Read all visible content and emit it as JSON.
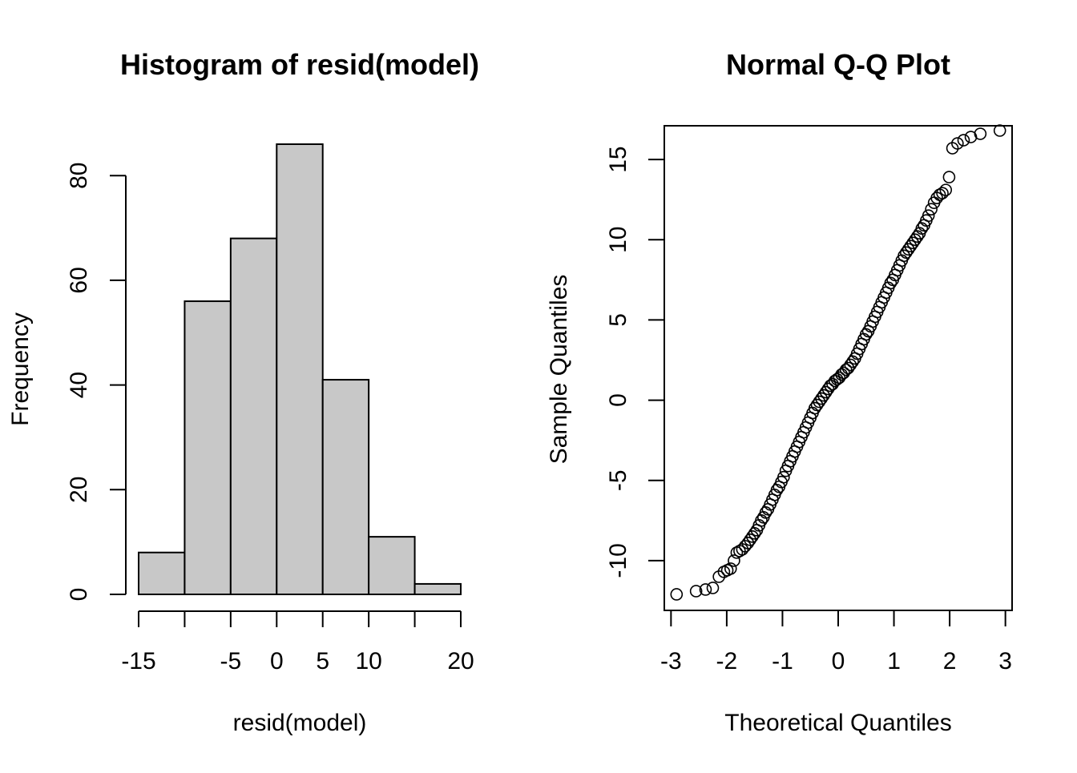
{
  "chart_data": [
    {
      "type": "bar",
      "title": "Histogram of resid(model)",
      "xlabel": "resid(model)",
      "ylabel": "Frequency",
      "bins": [
        {
          "from": -15,
          "to": -10,
          "count": 8
        },
        {
          "from": -10,
          "to": -5,
          "count": 56
        },
        {
          "from": -5,
          "to": 0,
          "count": 68
        },
        {
          "from": 0,
          "to": 5,
          "count": 86
        },
        {
          "from": 5,
          "to": 10,
          "count": 41
        },
        {
          "from": 10,
          "to": 15,
          "count": 11
        },
        {
          "from": 15,
          "to": 20,
          "count": 2
        }
      ],
      "xticks": [
        -15,
        -10,
        -5,
        0,
        5,
        10,
        15,
        20
      ],
      "xtick_labels": [
        "-15",
        "",
        "-5",
        "0",
        "5",
        "10",
        "",
        "20"
      ],
      "yticks": [
        0,
        20,
        40,
        60,
        80
      ],
      "ytick_labels": [
        "0",
        "20",
        "40",
        "60",
        "80"
      ],
      "xlim": [
        -15,
        20
      ],
      "ylim": [
        0,
        86
      ],
      "bar_fill": "#c8c8c8",
      "grid": false,
      "legend": "none"
    },
    {
      "type": "scatter",
      "title": "Normal Q-Q Plot",
      "xlabel": "Theoretical Quantiles",
      "ylabel": "Sample Quantiles",
      "x": [
        -2.9,
        -2.55,
        -2.38,
        -2.25,
        -2.14,
        -2.05,
        -1.99,
        -1.93,
        -1.87,
        -1.82,
        -1.77,
        -1.72,
        -1.67,
        -1.62,
        -1.58,
        -1.54,
        -1.5,
        -1.46,
        -1.42,
        -1.38,
        -1.34,
        -1.3,
        -1.26,
        -1.22,
        -1.18,
        -1.14,
        -1.1,
        -1.06,
        -1.02,
        -0.98,
        -0.94,
        -0.9,
        -0.86,
        -0.82,
        -0.78,
        -0.74,
        -0.7,
        -0.66,
        -0.62,
        -0.58,
        -0.54,
        -0.5,
        -0.46,
        -0.42,
        -0.38,
        -0.34,
        -0.3,
        -0.26,
        -0.22,
        -0.18,
        -0.14,
        -0.1,
        -0.06,
        -0.02,
        0.02,
        0.06,
        0.1,
        0.14,
        0.18,
        0.22,
        0.26,
        0.3,
        0.34,
        0.38,
        0.42,
        0.46,
        0.5,
        0.54,
        0.58,
        0.62,
        0.66,
        0.7,
        0.74,
        0.78,
        0.82,
        0.86,
        0.9,
        0.94,
        0.98,
        1.02,
        1.06,
        1.1,
        1.14,
        1.18,
        1.22,
        1.26,
        1.3,
        1.34,
        1.38,
        1.42,
        1.46,
        1.5,
        1.54,
        1.58,
        1.62,
        1.67,
        1.72,
        1.77,
        1.82,
        1.87,
        1.93,
        1.99,
        2.05,
        2.14,
        2.25,
        2.38,
        2.55,
        2.9
      ],
      "y": [
        -12.1,
        -11.9,
        -11.8,
        -11.7,
        -11.0,
        -10.7,
        -10.6,
        -10.5,
        -10.0,
        -9.5,
        -9.4,
        -9.3,
        -9.1,
        -8.9,
        -8.7,
        -8.5,
        -8.3,
        -8.1,
        -7.8,
        -7.5,
        -7.3,
        -7.0,
        -6.8,
        -6.5,
        -6.2,
        -5.9,
        -5.6,
        -5.4,
        -5.1,
        -4.8,
        -4.4,
        -4.1,
        -3.8,
        -3.5,
        -3.2,
        -2.9,
        -2.6,
        -2.3,
        -2.0,
        -1.7,
        -1.4,
        -1.1,
        -0.8,
        -0.5,
        -0.3,
        -0.1,
        0.1,
        0.3,
        0.5,
        0.7,
        0.9,
        1.0,
        1.2,
        1.3,
        1.4,
        1.6,
        1.7,
        1.9,
        2.0,
        2.2,
        2.4,
        2.6,
        2.9,
        3.2,
        3.5,
        3.8,
        4.1,
        4.3,
        4.6,
        4.9,
        5.2,
        5.5,
        5.8,
        6.1,
        6.4,
        6.7,
        7.0,
        7.3,
        7.5,
        7.8,
        8.1,
        8.4,
        8.7,
        9.0,
        9.2,
        9.4,
        9.6,
        9.8,
        10.0,
        10.2,
        10.4,
        10.7,
        10.9,
        11.2,
        11.5,
        11.9,
        12.3,
        12.6,
        12.8,
        12.9,
        13.1,
        13.9,
        15.7,
        16.0,
        16.2,
        16.4,
        16.6,
        16.8
      ],
      "xticks": [
        -3,
        -2,
        -1,
        0,
        1,
        2,
        3
      ],
      "xtick_labels": [
        "-3",
        "-2",
        "-1",
        "0",
        "1",
        "2",
        "3"
      ],
      "yticks": [
        -10,
        -5,
        0,
        5,
        10,
        15
      ],
      "ytick_labels": [
        "-10",
        "-5",
        "0",
        "5",
        "10",
        "15"
      ],
      "xlim": [
        -3.12,
        3.12
      ],
      "ylim": [
        -13.1,
        17.1
      ],
      "marker": "open-circle",
      "grid": false,
      "legend": "none"
    }
  ]
}
